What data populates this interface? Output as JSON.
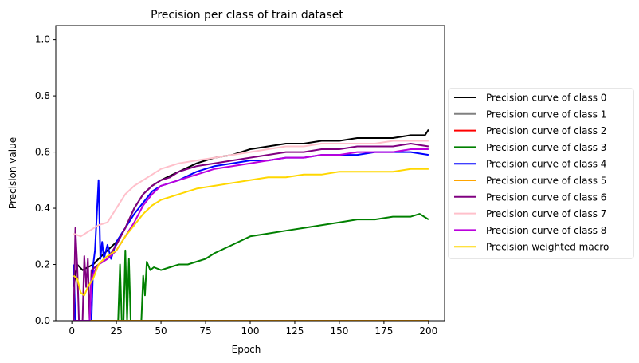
{
  "chart_data": {
    "type": "line",
    "title": "Precision per class of train dataset",
    "xlabel": "Epoch",
    "ylabel": "Precision value",
    "xlim": [
      -9,
      209
    ],
    "ylim": [
      0.0,
      1.05
    ],
    "xticks": [
      0,
      25,
      50,
      75,
      100,
      125,
      150,
      175,
      200
    ],
    "yticks": [
      0.0,
      0.2,
      0.4,
      0.6,
      0.8,
      1.0
    ],
    "ytick_labels": [
      "0.0",
      "0.2",
      "0.4",
      "0.6",
      "0.8",
      "1.0"
    ],
    "grid": false,
    "legend_position": "outside-right",
    "series": [
      {
        "name": "Precision curve of class 0",
        "color": "#000000",
        "points": [
          [
            1,
            0.12
          ],
          [
            3,
            0.2
          ],
          [
            6,
            0.18
          ],
          [
            9,
            0.19
          ],
          [
            12,
            0.2
          ],
          [
            15,
            0.22
          ],
          [
            20,
            0.25
          ],
          [
            25,
            0.28
          ],
          [
            30,
            0.33
          ],
          [
            35,
            0.4
          ],
          [
            40,
            0.45
          ],
          [
            45,
            0.48
          ],
          [
            50,
            0.5
          ],
          [
            60,
            0.53
          ],
          [
            70,
            0.56
          ],
          [
            80,
            0.58
          ],
          [
            90,
            0.59
          ],
          [
            100,
            0.61
          ],
          [
            110,
            0.62
          ],
          [
            120,
            0.63
          ],
          [
            130,
            0.63
          ],
          [
            140,
            0.64
          ],
          [
            150,
            0.64
          ],
          [
            160,
            0.65
          ],
          [
            170,
            0.65
          ],
          [
            180,
            0.65
          ],
          [
            190,
            0.66
          ],
          [
            198,
            0.66
          ],
          [
            200,
            0.68
          ]
        ]
      },
      {
        "name": "Precision curve of class 1",
        "color": "#808080",
        "points": [
          [
            1,
            0.0
          ],
          [
            200,
            0.0
          ]
        ]
      },
      {
        "name": "Precision curve of class 2",
        "color": "#ff0000",
        "points": [
          [
            1,
            0.0
          ],
          [
            200,
            0.0
          ]
        ]
      },
      {
        "name": "Precision curve of class 3",
        "color": "#008000",
        "points": [
          [
            1,
            0.0
          ],
          [
            26,
            0.0
          ],
          [
            27,
            0.2
          ],
          [
            28,
            0.0
          ],
          [
            29,
            0.0
          ],
          [
            30,
            0.25
          ],
          [
            31,
            0.0
          ],
          [
            32,
            0.22
          ],
          [
            33,
            0.0
          ],
          [
            39,
            0.0
          ],
          [
            40,
            0.16
          ],
          [
            41,
            0.09
          ],
          [
            42,
            0.21
          ],
          [
            44,
            0.18
          ],
          [
            46,
            0.19
          ],
          [
            50,
            0.18
          ],
          [
            55,
            0.19
          ],
          [
            60,
            0.2
          ],
          [
            65,
            0.2
          ],
          [
            70,
            0.21
          ],
          [
            75,
            0.22
          ],
          [
            80,
            0.24
          ],
          [
            90,
            0.27
          ],
          [
            100,
            0.3
          ],
          [
            110,
            0.31
          ],
          [
            120,
            0.32
          ],
          [
            130,
            0.33
          ],
          [
            140,
            0.34
          ],
          [
            150,
            0.35
          ],
          [
            160,
            0.36
          ],
          [
            170,
            0.36
          ],
          [
            180,
            0.37
          ],
          [
            190,
            0.37
          ],
          [
            195,
            0.38
          ],
          [
            200,
            0.36
          ]
        ]
      },
      {
        "name": "Precision curve of class 4",
        "color": "#0000ff",
        "points": [
          [
            1,
            0.2
          ],
          [
            2,
            0.0
          ],
          [
            11,
            0.0
          ],
          [
            12,
            0.2
          ],
          [
            13,
            0.25
          ],
          [
            15,
            0.5
          ],
          [
            16,
            0.22
          ],
          [
            17,
            0.28
          ],
          [
            18,
            0.22
          ],
          [
            20,
            0.27
          ],
          [
            22,
            0.22
          ],
          [
            25,
            0.28
          ],
          [
            30,
            0.33
          ],
          [
            35,
            0.38
          ],
          [
            40,
            0.42
          ],
          [
            45,
            0.46
          ],
          [
            50,
            0.48
          ],
          [
            60,
            0.5
          ],
          [
            70,
            0.53
          ],
          [
            80,
            0.55
          ],
          [
            90,
            0.56
          ],
          [
            100,
            0.57
          ],
          [
            110,
            0.57
          ],
          [
            120,
            0.58
          ],
          [
            130,
            0.58
          ],
          [
            140,
            0.59
          ],
          [
            150,
            0.59
          ],
          [
            160,
            0.59
          ],
          [
            170,
            0.6
          ],
          [
            180,
            0.6
          ],
          [
            190,
            0.6
          ],
          [
            200,
            0.59
          ]
        ]
      },
      {
        "name": "Precision curve of class 5",
        "color": "#ffa500",
        "points": [
          [
            1,
            0.0
          ],
          [
            200,
            0.0
          ]
        ]
      },
      {
        "name": "Precision curve of class 6",
        "color": "#800080",
        "points": [
          [
            1,
            0.0
          ],
          [
            2,
            0.33
          ],
          [
            3,
            0.2
          ],
          [
            4,
            0.0
          ],
          [
            6,
            0.0
          ],
          [
            7,
            0.23
          ],
          [
            8,
            0.12
          ],
          [
            9,
            0.22
          ],
          [
            10,
            0.0
          ],
          [
            11,
            0.18
          ],
          [
            13,
            0.19
          ],
          [
            15,
            0.2
          ],
          [
            20,
            0.22
          ],
          [
            25,
            0.27
          ],
          [
            30,
            0.33
          ],
          [
            35,
            0.4
          ],
          [
            40,
            0.45
          ],
          [
            45,
            0.48
          ],
          [
            50,
            0.5
          ],
          [
            55,
            0.51
          ],
          [
            60,
            0.53
          ],
          [
            70,
            0.55
          ],
          [
            80,
            0.56
          ],
          [
            90,
            0.57
          ],
          [
            100,
            0.58
          ],
          [
            110,
            0.59
          ],
          [
            120,
            0.6
          ],
          [
            130,
            0.6
          ],
          [
            140,
            0.61
          ],
          [
            150,
            0.61
          ],
          [
            160,
            0.62
          ],
          [
            170,
            0.62
          ],
          [
            180,
            0.62
          ],
          [
            190,
            0.63
          ],
          [
            200,
            0.62
          ]
        ]
      },
      {
        "name": "Precision curve of class 7",
        "color": "#ffc0cb",
        "points": [
          [
            1,
            0.31
          ],
          [
            5,
            0.3
          ],
          [
            10,
            0.32
          ],
          [
            15,
            0.34
          ],
          [
            20,
            0.35
          ],
          [
            25,
            0.4
          ],
          [
            30,
            0.45
          ],
          [
            35,
            0.48
          ],
          [
            40,
            0.5
          ],
          [
            45,
            0.52
          ],
          [
            50,
            0.54
          ],
          [
            60,
            0.56
          ],
          [
            70,
            0.57
          ],
          [
            80,
            0.58
          ],
          [
            90,
            0.59
          ],
          [
            100,
            0.6
          ],
          [
            110,
            0.61
          ],
          [
            120,
            0.62
          ],
          [
            130,
            0.62
          ],
          [
            140,
            0.63
          ],
          [
            150,
            0.63
          ],
          [
            160,
            0.63
          ],
          [
            170,
            0.63
          ],
          [
            180,
            0.64
          ],
          [
            190,
            0.64
          ],
          [
            200,
            0.64
          ]
        ]
      },
      {
        "name": "Precision curve of class 8",
        "color": "#bb00dd",
        "points": [
          [
            1,
            0.0
          ],
          [
            10,
            0.0
          ],
          [
            11,
            0.15
          ],
          [
            13,
            0.18
          ],
          [
            15,
            0.2
          ],
          [
            20,
            0.22
          ],
          [
            25,
            0.25
          ],
          [
            30,
            0.3
          ],
          [
            35,
            0.35
          ],
          [
            40,
            0.41
          ],
          [
            45,
            0.45
          ],
          [
            50,
            0.48
          ],
          [
            60,
            0.5
          ],
          [
            70,
            0.52
          ],
          [
            80,
            0.54
          ],
          [
            90,
            0.55
          ],
          [
            100,
            0.56
          ],
          [
            110,
            0.57
          ],
          [
            120,
            0.58
          ],
          [
            130,
            0.58
          ],
          [
            140,
            0.59
          ],
          [
            150,
            0.59
          ],
          [
            160,
            0.6
          ],
          [
            170,
            0.6
          ],
          [
            180,
            0.6
          ],
          [
            190,
            0.61
          ],
          [
            200,
            0.61
          ]
        ]
      },
      {
        "name": "Precision weighted macro",
        "color": "#ffd700",
        "points": [
          [
            1,
            0.16
          ],
          [
            3,
            0.15
          ],
          [
            5,
            0.1
          ],
          [
            7,
            0.09
          ],
          [
            9,
            0.12
          ],
          [
            12,
            0.15
          ],
          [
            15,
            0.2
          ],
          [
            18,
            0.22
          ],
          [
            20,
            0.23
          ],
          [
            25,
            0.25
          ],
          [
            30,
            0.3
          ],
          [
            35,
            0.34
          ],
          [
            40,
            0.38
          ],
          [
            45,
            0.41
          ],
          [
            50,
            0.43
          ],
          [
            60,
            0.45
          ],
          [
            70,
            0.47
          ],
          [
            80,
            0.48
          ],
          [
            90,
            0.49
          ],
          [
            100,
            0.5
          ],
          [
            110,
            0.51
          ],
          [
            120,
            0.51
          ],
          [
            130,
            0.52
          ],
          [
            140,
            0.52
          ],
          [
            150,
            0.53
          ],
          [
            160,
            0.53
          ],
          [
            170,
            0.53
          ],
          [
            180,
            0.53
          ],
          [
            190,
            0.54
          ],
          [
            200,
            0.54
          ]
        ]
      }
    ]
  }
}
